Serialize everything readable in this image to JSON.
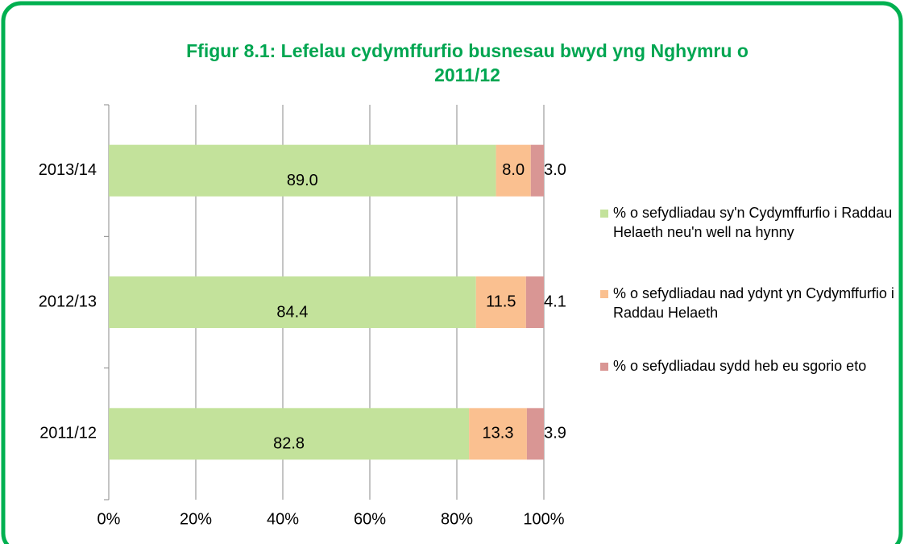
{
  "chart_data": {
    "type": "stacked-bar-horizontal",
    "title": "Ffigur 8.1: Lefelau cydymffurfio busnesau bwyd yng Nghymru o 2011/12",
    "categories": [
      "2013/14",
      "2012/13",
      "2011/12"
    ],
    "series": [
      {
        "name": "% o sefydliadau sy'n Cydymffurfio i Raddau Helaeth neu'n well na hynny",
        "color": "#c3e29b",
        "values": [
          89.0,
          84.4,
          82.8
        ],
        "value_labels": [
          "89.0",
          "84.4",
          "82.8"
        ]
      },
      {
        "name": "% o sefydliadau nad ydynt yn Cydymffurfio i Raddau Helaeth",
        "color": "#fac090",
        "values": [
          8.0,
          11.5,
          13.3
        ],
        "value_labels": [
          "8.0",
          "11.5",
          "13.3"
        ]
      },
      {
        "name": "% o sefydliadau sydd heb eu sgorio eto",
        "color": "#d99694",
        "values": [
          3.0,
          4.1,
          3.9
        ],
        "value_labels": [
          "3.0",
          "4.1",
          "3.9"
        ]
      }
    ],
    "xlim": [
      0,
      100
    ],
    "xticks": [
      {
        "value": 0,
        "label": "0%"
      },
      {
        "value": 20,
        "label": "20%"
      },
      {
        "value": 40,
        "label": "40%"
      },
      {
        "value": 60,
        "label": "60%"
      },
      {
        "value": 80,
        "label": "80%"
      },
      {
        "value": 100,
        "label": "100%"
      }
    ],
    "grid": true,
    "legend": "right"
  }
}
